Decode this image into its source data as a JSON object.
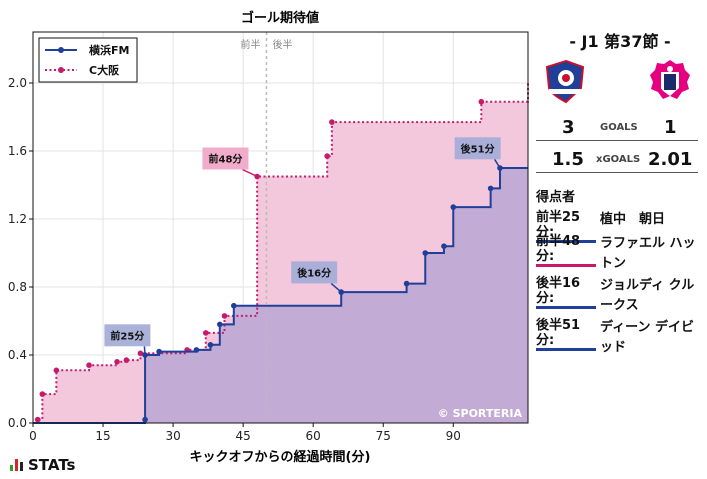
{
  "title": "ゴール期待値",
  "xlabel": "キックオフからの経過時間(分)",
  "half_labels": {
    "first": "前半",
    "second": "後半"
  },
  "watermark": "© SPORTERIA",
  "brand": "STATs",
  "legend": [
    {
      "name": "横浜FM",
      "color": "#1f3f99"
    },
    {
      "name": "C大阪",
      "color": "#c8196d"
    }
  ],
  "match": {
    "header": "- J1 第37節 -",
    "home_score": "3",
    "away_score": "1",
    "goals_label": "GOALS",
    "home_xg": "1.5",
    "away_xg": "2.01",
    "xg_label": "xGOALS"
  },
  "scorers_title": "得点者",
  "scorers": [
    {
      "time": "前半25分:",
      "name": "植中　朝日",
      "team": "home"
    },
    {
      "time": "前半48分:",
      "name": "ラファエル ハットン",
      "team": "away"
    },
    {
      "time": "後半16分:",
      "name": "ジョルディ クルークス",
      "team": "home"
    },
    {
      "time": "後半51分:",
      "name": "ディーン デイビッド",
      "team": "home"
    }
  ],
  "chart_data": {
    "type": "area",
    "title": "ゴール期待値",
    "xlabel": "キックオフからの経過時間(分)",
    "ylabel": "",
    "xlim": [
      0,
      106
    ],
    "ylim": [
      0,
      2.3
    ],
    "xticks": [
      0,
      15,
      30,
      45,
      60,
      75,
      90
    ],
    "yticks": [
      0.0,
      0.4,
      0.8,
      1.2,
      1.6,
      2.0
    ],
    "grid": true,
    "legend_position": "top-left",
    "halftime_x": 50,
    "series": [
      {
        "name": "横浜FM",
        "color": "#1f3f99",
        "fill": "#b9a6d4",
        "style": "solid",
        "x": [
          0,
          24,
          24,
          27,
          35,
          38,
          40,
          43,
          66,
          80,
          84,
          88,
          90,
          98,
          100,
          106
        ],
        "y": [
          0,
          0.02,
          0.4,
          0.42,
          0.43,
          0.46,
          0.58,
          0.69,
          0.77,
          0.82,
          1.0,
          1.04,
          1.27,
          1.38,
          1.5,
          1.5
        ]
      },
      {
        "name": "C大阪",
        "color": "#c8196d",
        "fill": "#f3c8dd",
        "style": "dotted",
        "x": [
          0,
          1,
          2,
          5,
          12,
          18,
          20,
          23,
          33,
          37,
          41,
          48,
          63,
          64,
          96,
          106
        ],
        "y": [
          0,
          0.02,
          0.17,
          0.31,
          0.34,
          0.36,
          0.37,
          0.41,
          0.43,
          0.53,
          0.63,
          1.45,
          1.57,
          1.77,
          1.89,
          2.01
        ]
      }
    ],
    "annotations": [
      {
        "label": "前25分",
        "series": "横浜FM",
        "x": 24,
        "y": 0.4,
        "box_x": 20,
        "box_y": 0.51
      },
      {
        "label": "前48分",
        "series": "C大阪",
        "x": 48,
        "y": 1.45,
        "box_x": 41,
        "box_y": 1.55
      },
      {
        "label": "後16分",
        "series": "横浜FM",
        "x": 66,
        "y": 0.77,
        "box_x": 60,
        "box_y": 0.88
      },
      {
        "label": "後51分",
        "series": "横浜FM",
        "x": 100,
        "y": 1.5,
        "box_x": 95,
        "box_y": 1.61
      }
    ]
  }
}
